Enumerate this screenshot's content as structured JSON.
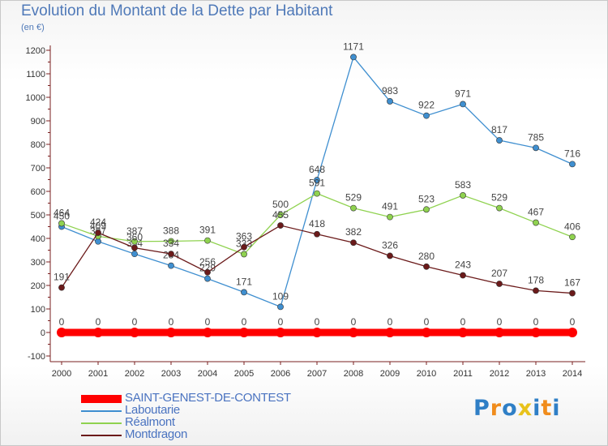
{
  "header": {
    "title": "Evolution du Montant de la Dette par Habitant",
    "subtitle": "(en €)"
  },
  "colors": {
    "axis": "#7a1f1f",
    "tick_text": "#333333",
    "value_text": "#444444"
  },
  "logo": {
    "text": "Proxiti",
    "letters": [
      {
        "ch": "P",
        "color": "#2f7fc6"
      },
      {
        "ch": "r",
        "color": "#f08c1c"
      },
      {
        "ch": "o",
        "color": "#2f7fc6"
      },
      {
        "ch": "x",
        "color": "#e8c21a"
      },
      {
        "ch": "i",
        "color": "#2f7fc6"
      },
      {
        "ch": "t",
        "color": "#f08c1c"
      },
      {
        "ch": "i",
        "color": "#2f7fc6"
      }
    ]
  },
  "chart_data": {
    "type": "line",
    "title": "Evolution du Montant de la Dette par Habitant",
    "subtitle": "(en €)",
    "ylim": [
      -100,
      1200
    ],
    "yticks": [
      -100,
      0,
      100,
      200,
      300,
      400,
      500,
      600,
      700,
      800,
      900,
      1000,
      1100,
      1200
    ],
    "x": [
      "2000",
      "2001",
      "2002",
      "2003",
      "2004",
      "2005",
      "2006",
      "2007",
      "2008",
      "2009",
      "2010",
      "2011",
      "2012",
      "2013",
      "2014"
    ],
    "grid": false,
    "legend_position": "bottom-left",
    "series": [
      {
        "name": "SAINT-GENEST-DE-CONTEST",
        "color": "#ff0000",
        "emphasis": true,
        "values": [
          0,
          0,
          0,
          0,
          0,
          0,
          0,
          0,
          0,
          0,
          0,
          0,
          0,
          0,
          0
        ]
      },
      {
        "name": "Laboutarie",
        "color": "#3f8fd0",
        "emphasis": false,
        "values": [
          450,
          387,
          334,
          284,
          229,
          171,
          109,
          648,
          1171,
          983,
          922,
          971,
          817,
          785,
          716
        ]
      },
      {
        "name": "Réalmont",
        "color": "#8fd24f",
        "emphasis": false,
        "values": [
          464,
          409,
          387,
          388,
          391,
          333,
          500,
          591,
          529,
          491,
          523,
          583,
          529,
          467,
          406
        ]
      },
      {
        "name": "Montdragon",
        "color": "#6b1a1a",
        "emphasis": false,
        "values": [
          191,
          424,
          360,
          334,
          256,
          363,
          455,
          418,
          382,
          326,
          280,
          243,
          207,
          178,
          167
        ]
      }
    ]
  }
}
